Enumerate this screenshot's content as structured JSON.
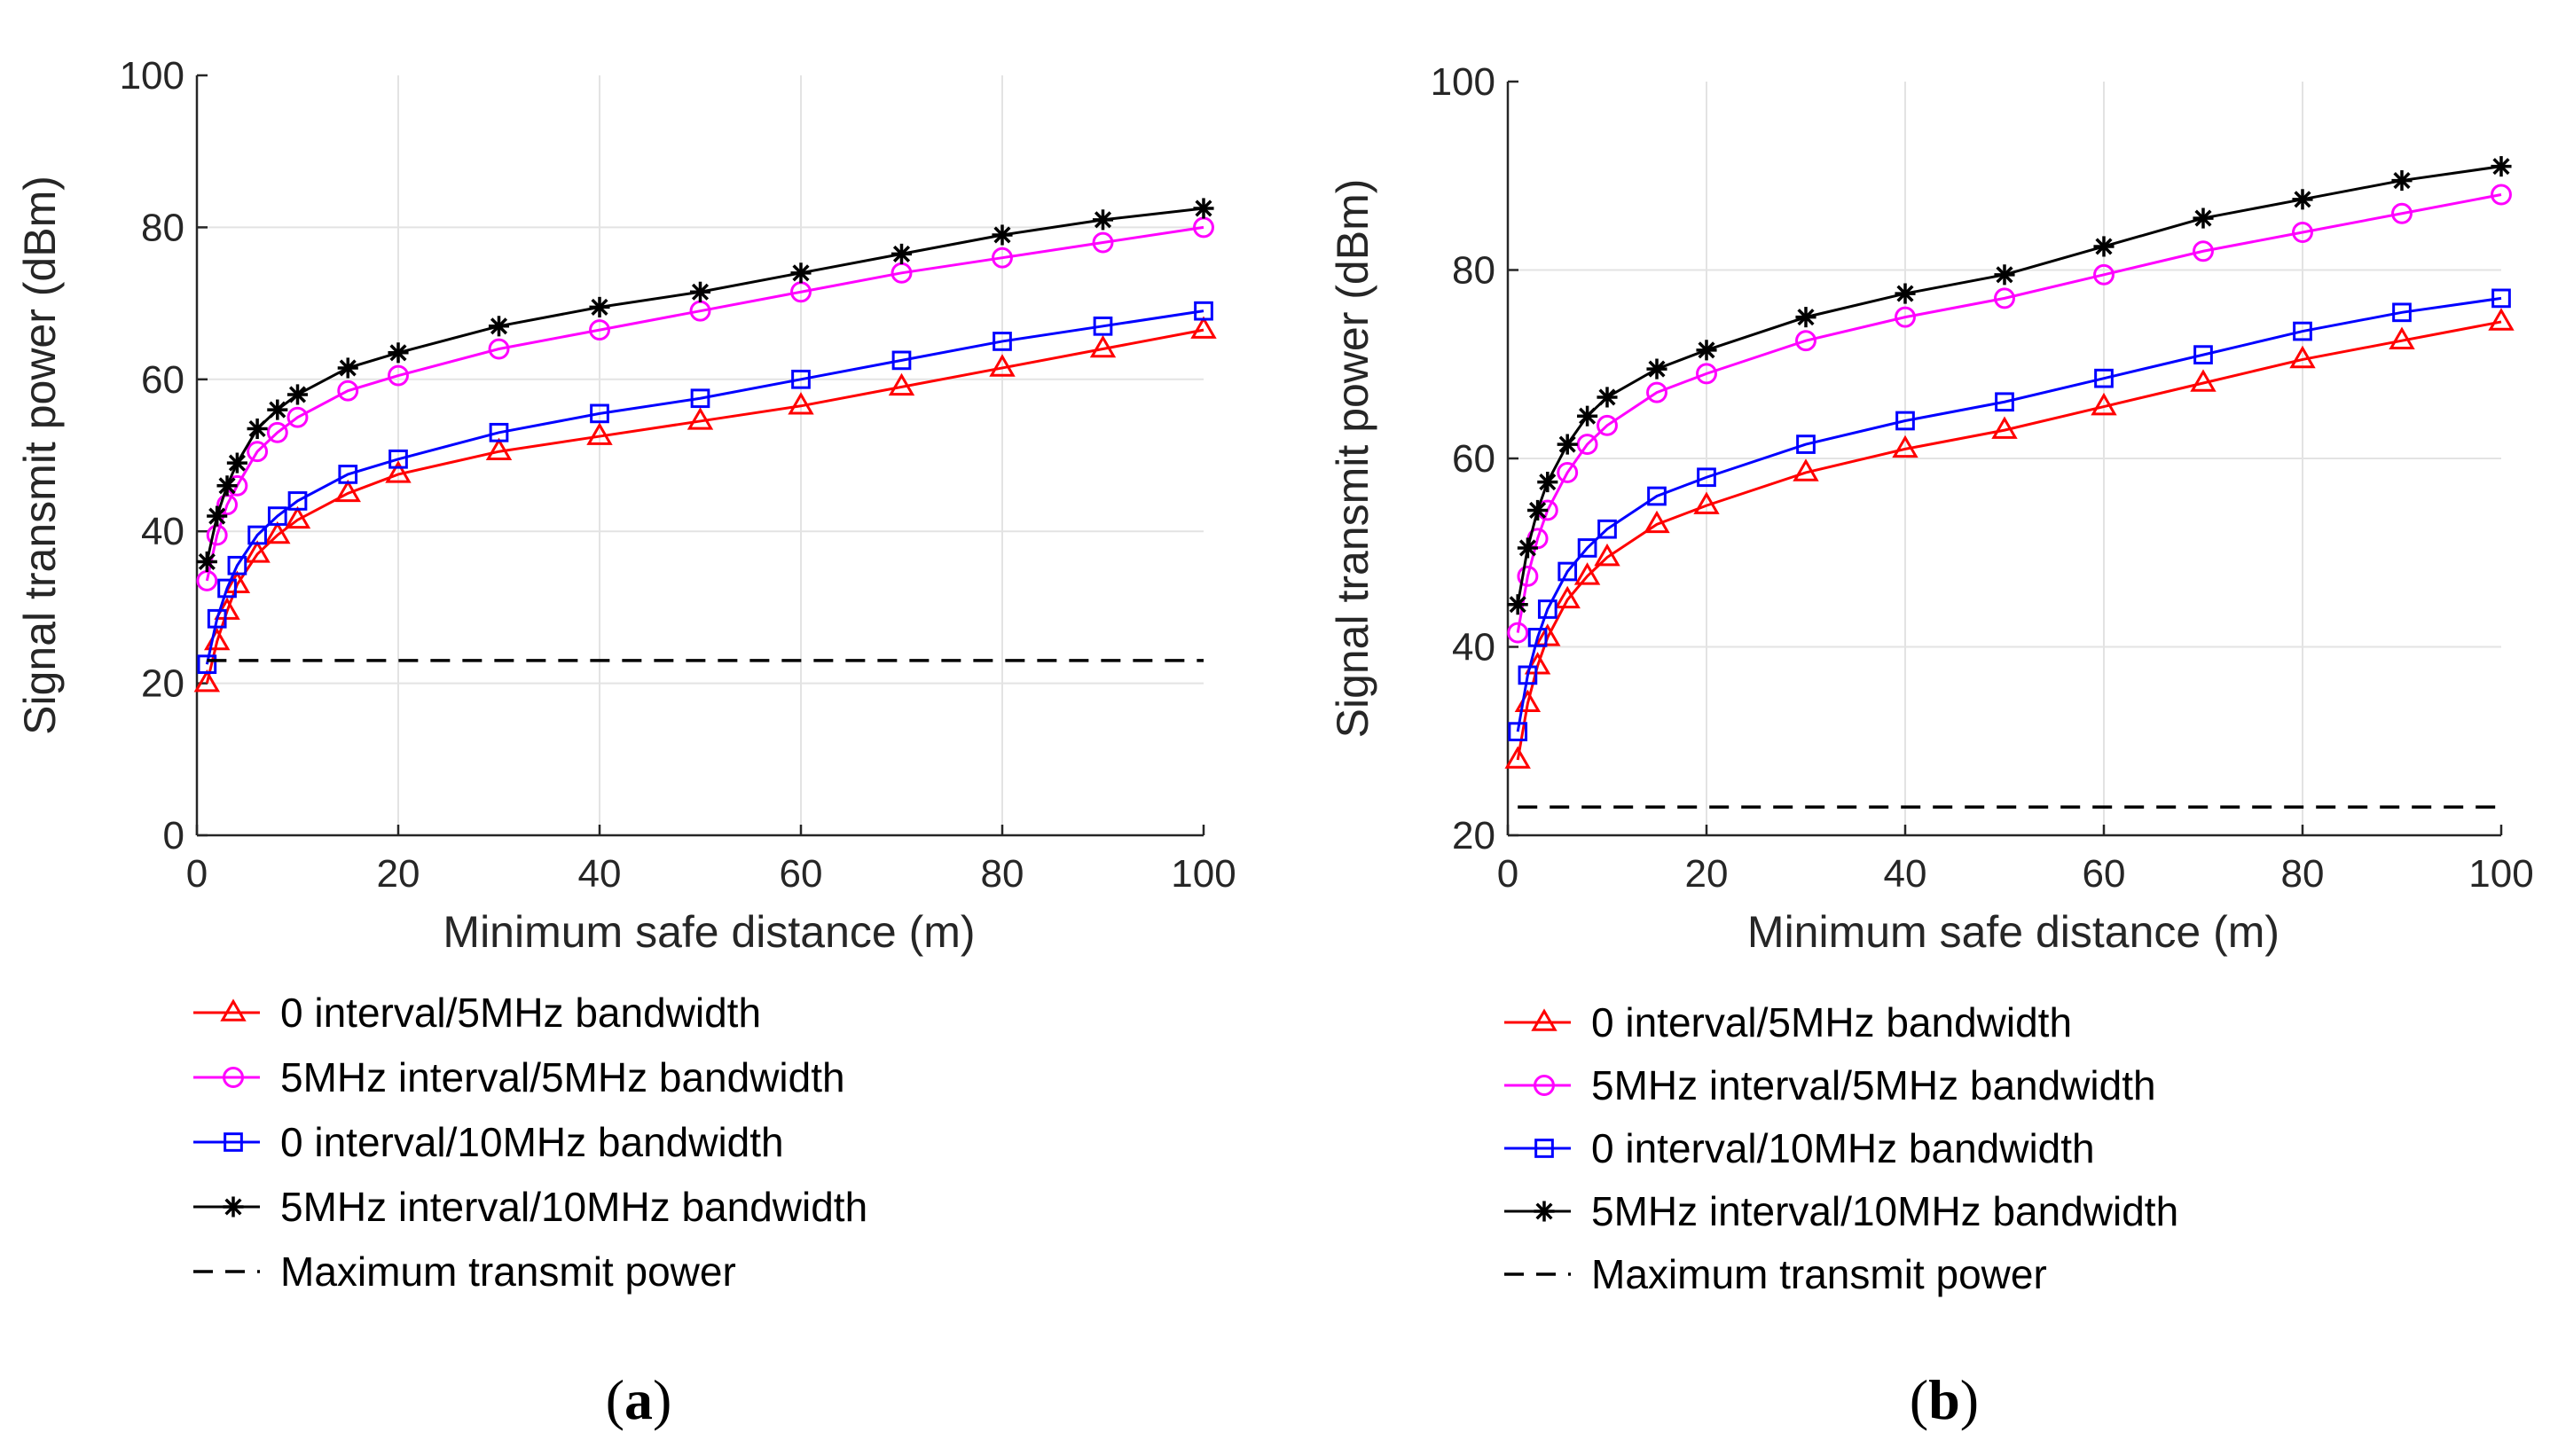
{
  "chart_data": [
    {
      "type": "line",
      "panel": "a",
      "caption_open": "(",
      "caption_letter": "a",
      "caption_close": ")",
      "title": "",
      "xlabel": "Minimum safe distance (m)",
      "ylabel": "Signal transmit power (dBm)",
      "xlim": [
        0,
        100
      ],
      "ylim": [
        0,
        100
      ],
      "xticks": [
        0,
        20,
        40,
        60,
        80,
        100
      ],
      "yticks": [
        0,
        20,
        40,
        60,
        80,
        100
      ],
      "grid": true,
      "legend_position": "below",
      "series": [
        {
          "name": "0 interval/5MHz bandwidth",
          "color": "#ff0000",
          "marker": "triangle",
          "x": [
            1,
            2,
            3,
            4,
            6,
            8,
            10,
            15,
            20,
            30,
            40,
            50,
            60,
            70,
            80,
            90,
            100
          ],
          "y": [
            20,
            25.5,
            29.5,
            33,
            37,
            39.5,
            41.5,
            45,
            47.5,
            50.5,
            52.5,
            54.5,
            56.5,
            59,
            61.5,
            64,
            66.5
          ]
        },
        {
          "name": "5MHz interval/5MHz bandwidth",
          "color": "#ff00ff",
          "marker": "circle",
          "x": [
            1,
            2,
            3,
            4,
            6,
            8,
            10,
            15,
            20,
            30,
            40,
            50,
            60,
            70,
            80,
            90,
            100
          ],
          "y": [
            33.5,
            39.5,
            43.5,
            46,
            50.5,
            53,
            55,
            58.5,
            60.5,
            64,
            66.5,
            69,
            71.5,
            74,
            76,
            78,
            80
          ]
        },
        {
          "name": "0 interval/10MHz bandwidth",
          "color": "#0000ff",
          "marker": "square",
          "x": [
            1,
            2,
            3,
            4,
            6,
            8,
            10,
            15,
            20,
            30,
            40,
            50,
            60,
            70,
            80,
            90,
            100
          ],
          "y": [
            22.5,
            28.5,
            32.5,
            35.5,
            39.5,
            42,
            44,
            47.5,
            49.5,
            53,
            55.5,
            57.5,
            60,
            62.5,
            65,
            67,
            69
          ]
        },
        {
          "name": "5MHz interval/10MHz bandwidth",
          "color": "#000000",
          "marker": "star",
          "x": [
            1,
            2,
            3,
            4,
            6,
            8,
            10,
            15,
            20,
            30,
            40,
            50,
            60,
            70,
            80,
            90,
            100
          ],
          "y": [
            36,
            42,
            46,
            49,
            53.5,
            56,
            58,
            61.5,
            63.5,
            67,
            69.5,
            71.5,
            74,
            76.5,
            79,
            81,
            82.5
          ]
        },
        {
          "name": "Maximum transmit power",
          "color": "#000000",
          "marker": "none",
          "dashed": true,
          "x": [
            1,
            100
          ],
          "y": [
            23,
            23
          ]
        }
      ]
    },
    {
      "type": "line",
      "panel": "b",
      "caption_open": "(",
      "caption_letter": "b",
      "caption_close": ")",
      "title": "",
      "xlabel": "Minimum safe distance (m)",
      "ylabel": "Signal transmit power (dBm)",
      "xlim": [
        0,
        100
      ],
      "ylim": [
        20,
        100
      ],
      "xticks": [
        0,
        20,
        40,
        60,
        80,
        100
      ],
      "yticks": [
        20,
        40,
        60,
        80,
        100
      ],
      "grid": true,
      "legend_position": "below",
      "series": [
        {
          "name": "0 interval/5MHz bandwidth",
          "color": "#ff0000",
          "marker": "triangle",
          "x": [
            1,
            2,
            3,
            4,
            6,
            8,
            10,
            15,
            20,
            30,
            40,
            50,
            60,
            70,
            80,
            90,
            100
          ],
          "y": [
            28,
            34,
            38,
            41,
            45,
            47.5,
            49.5,
            53,
            55,
            58.5,
            61,
            63,
            65.5,
            68,
            70.5,
            72.5,
            74.5
          ]
        },
        {
          "name": "5MHz interval/5MHz bandwidth",
          "color": "#ff00ff",
          "marker": "circle",
          "x": [
            1,
            2,
            3,
            4,
            6,
            8,
            10,
            15,
            20,
            30,
            40,
            50,
            60,
            70,
            80,
            90,
            100
          ],
          "y": [
            41.5,
            47.5,
            51.5,
            54.5,
            58.5,
            61.5,
            63.5,
            67,
            69,
            72.5,
            75,
            77,
            79.5,
            82,
            84,
            86,
            88
          ]
        },
        {
          "name": "0 interval/10MHz bandwidth",
          "color": "#0000ff",
          "marker": "square",
          "x": [
            1,
            2,
            3,
            4,
            6,
            8,
            10,
            15,
            20,
            30,
            40,
            50,
            60,
            70,
            80,
            90,
            100
          ],
          "y": [
            31,
            37,
            41,
            44,
            48,
            50.5,
            52.5,
            56,
            58,
            61.5,
            64,
            66,
            68.5,
            71,
            73.5,
            75.5,
            77
          ]
        },
        {
          "name": "5MHz interval/10MHz bandwidth",
          "color": "#000000",
          "marker": "star",
          "x": [
            1,
            2,
            3,
            4,
            6,
            8,
            10,
            15,
            20,
            30,
            40,
            50,
            60,
            70,
            80,
            90,
            100
          ],
          "y": [
            44.5,
            50.5,
            54.5,
            57.5,
            61.5,
            64.5,
            66.5,
            69.5,
            71.5,
            75,
            77.5,
            79.5,
            82.5,
            85.5,
            87.5,
            89.5,
            91
          ]
        },
        {
          "name": "Maximum transmit power",
          "color": "#000000",
          "marker": "none",
          "dashed": true,
          "x": [
            1,
            100
          ],
          "y": [
            23,
            23
          ]
        }
      ]
    }
  ]
}
